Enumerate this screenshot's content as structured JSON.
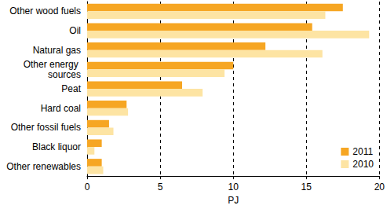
{
  "chart_data": {
    "type": "bar",
    "orientation": "horizontal",
    "categories": [
      "Other wood fuels",
      "Oil",
      "Natural gas",
      "Other energy sources",
      "Peat",
      "Hard coal",
      "Other fossil fuels",
      "Black liquor",
      "Other renewables"
    ],
    "series": [
      {
        "name": "2011",
        "color": "#f6a623",
        "values": [
          17.5,
          15.4,
          12.2,
          10.0,
          6.5,
          2.7,
          1.5,
          1.0,
          1.0
        ]
      },
      {
        "name": "2010",
        "color": "#fde4a3",
        "values": [
          16.3,
          19.3,
          16.1,
          9.4,
          7.9,
          2.8,
          1.8,
          0.5,
          1.1
        ]
      }
    ],
    "x_label": "PJ",
    "xlim": [
      0,
      20
    ],
    "xticks": [
      0,
      5,
      10,
      15,
      20
    ],
    "grid": true,
    "legend": "lower right"
  }
}
